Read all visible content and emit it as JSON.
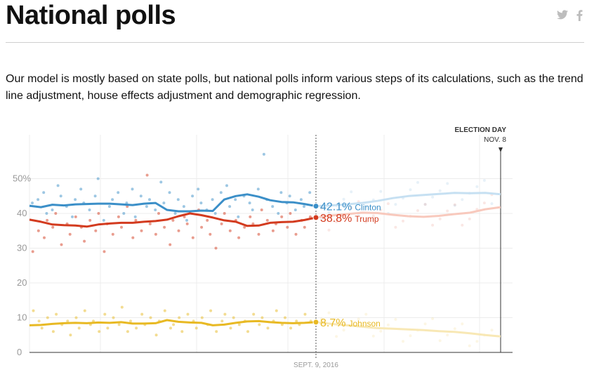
{
  "page": {
    "title": "National polls",
    "intro": "Our model is mostly based on state polls, but national polls inform various steps of its calculations, such as the trend line adjustment, house effects adjustment and demographic regression.",
    "social": [
      {
        "icon": "twitter-icon",
        "color": "#bdbdbd"
      },
      {
        "icon": "facebook-icon",
        "color": "#bdbdbd"
      }
    ]
  },
  "chart_data": {
    "type": "line",
    "y_ticks": [
      "50%",
      "40",
      "30",
      "20",
      "10",
      "0"
    ],
    "ylim": [
      0,
      60
    ],
    "x_label_today": "SEPT. 9, 2016",
    "election_day": {
      "line1": "ELECTION DAY",
      "line2": "NOV. 8"
    },
    "grid": true,
    "series": [
      {
        "name": "Clinton",
        "label": "42.1%",
        "color": "#3b8fc8",
        "light_color": "#c6e0f2",
        "current": 42.1,
        "trend": [
          42.2,
          41.8,
          42.5,
          42.3,
          42.6,
          42.7,
          42.8,
          42.8,
          42.6,
          42.4,
          42.8,
          43.0,
          41.0,
          40.6,
          40.6,
          40.8,
          40.7,
          44.0,
          45.0,
          45.5,
          44.8,
          43.8,
          43.3,
          43.2,
          42.7,
          42.1
        ],
        "forecast": [
          42.1,
          42.3,
          42.6,
          43.0,
          43.6,
          44.4,
          45.0,
          45.3,
          45.6,
          45.9,
          45.8,
          45.9,
          45.5
        ],
        "polls": [
          43,
          44,
          46,
          40,
          41,
          48,
          45,
          42,
          39,
          44,
          47,
          43,
          41,
          45,
          50,
          38,
          42,
          44,
          46,
          40,
          43,
          47,
          39,
          45,
          42,
          44,
          41,
          49,
          43,
          46,
          40,
          44,
          42,
          38,
          45,
          47,
          43,
          41,
          44,
          40,
          46,
          48,
          42,
          44,
          39,
          45,
          43,
          41,
          47,
          57,
          44,
          42,
          40,
          46,
          43,
          45,
          41,
          44,
          42,
          46
        ]
      },
      {
        "name": "Trump",
        "label": "38.8%",
        "color": "#d33b1f",
        "light_color": "#f8c9bd",
        "current": 38.8,
        "trend": [
          38.2,
          37.6,
          36.8,
          36.6,
          36.5,
          36.2,
          36.8,
          37.1,
          37.3,
          37.3,
          37.6,
          37.8,
          38.2,
          39.2,
          40.0,
          39.5,
          38.8,
          38.0,
          37.6,
          36.4,
          36.5,
          37.3,
          37.5,
          37.6,
          38.1,
          38.8
        ],
        "forecast": [
          38.8,
          39.4,
          39.8,
          40.2,
          40.1,
          39.6,
          39.2,
          39.0,
          39.3,
          39.8,
          40.2,
          41.2,
          41.8
        ],
        "polls": [
          29,
          35,
          33,
          38,
          36,
          40,
          31,
          37,
          34,
          39,
          36,
          32,
          38,
          35,
          40,
          29,
          37,
          34,
          39,
          36,
          42,
          33,
          38,
          35,
          51,
          37,
          34,
          40,
          36,
          31,
          38,
          35,
          39,
          37,
          33,
          41,
          36,
          38,
          34,
          30,
          37,
          40,
          35,
          38,
          33,
          36,
          39,
          37,
          34,
          41,
          38,
          35,
          37,
          39,
          36,
          40,
          34,
          38,
          36,
          39
        ]
      },
      {
        "name": "Johnson",
        "label": "8.7%",
        "color": "#e8b923",
        "light_color": "#f8e8b5",
        "current": 8.7,
        "trend": [
          7.8,
          7.9,
          8.2,
          8.4,
          8.5,
          8.4,
          8.6,
          8.5,
          8.7,
          8.3,
          8.3,
          8.4,
          9.3,
          8.8,
          8.6,
          8.5,
          7.8,
          8.0,
          8.5,
          8.9,
          9.0,
          8.7,
          8.5,
          8.4,
          8.5,
          8.7
        ],
        "forecast": [
          8.7,
          8.2,
          7.8,
          7.4,
          7.0,
          6.8,
          6.6,
          6.4,
          6.1,
          5.9,
          5.5,
          5.0,
          4.6
        ],
        "polls": [
          12,
          9,
          7,
          10,
          6,
          11,
          8,
          9,
          5,
          10,
          7,
          12,
          8,
          9,
          6,
          11,
          7,
          10,
          8,
          13,
          6,
          9,
          7,
          11,
          8,
          10,
          5,
          9,
          12,
          7,
          8,
          10,
          6,
          11,
          9,
          7,
          10,
          8,
          12,
          6,
          9,
          11,
          7,
          10,
          8,
          9,
          6,
          11,
          8,
          10,
          7,
          9,
          12,
          8,
          10,
          7,
          9,
          8,
          11,
          9
        ]
      }
    ]
  }
}
